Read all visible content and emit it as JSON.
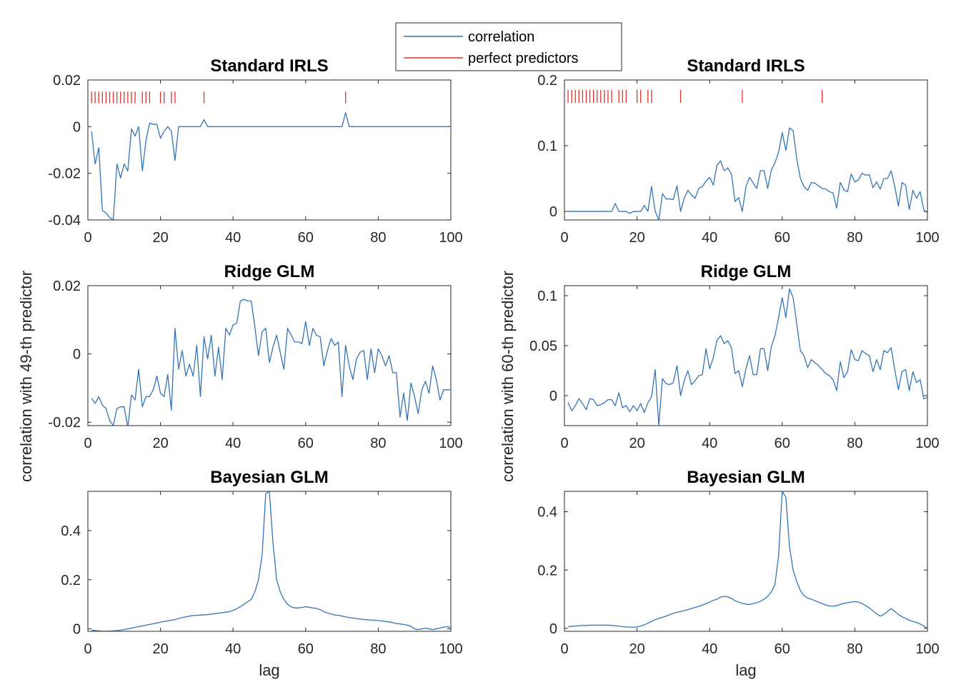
{
  "figure": {
    "legend": {
      "entries": [
        {
          "label": "correlation",
          "color": "#0072BD"
        },
        {
          "label": "perfect predictors",
          "color": "#D95319"
        }
      ]
    },
    "left_ylabel": "correlation with 49-th predictor",
    "right_ylabel": "correlation with 60-th predictor",
    "xlabel_left": "lag",
    "xlabel_right": "lag",
    "colors": {
      "line": "#3474b5",
      "marker": "#e0302b",
      "axis": "#262626"
    }
  },
  "chart_data": [
    {
      "id": "irls49",
      "type": "line",
      "title": "Standard IRLS",
      "xlabel": "",
      "ylabel": "",
      "xlim": [
        0,
        100
      ],
      "ylim": [
        -0.04,
        0.02
      ],
      "xticks": [
        "0",
        "20",
        "40",
        "60",
        "80",
        "100"
      ],
      "yticks": [
        {
          "v": -0.04,
          "t": "-0.04"
        },
        {
          "v": -0.02,
          "t": "-0.02"
        },
        {
          "v": 0,
          "t": "0"
        },
        {
          "v": 0.02,
          "t": "0.02"
        }
      ],
      "marker_y": 0.0125,
      "marker_height": 0.005,
      "markers": [
        1,
        2,
        3,
        4,
        5,
        6,
        7,
        8,
        9,
        10,
        11,
        12,
        13,
        15,
        16,
        17,
        20,
        21,
        23,
        24,
        32,
        71
      ],
      "series": [
        {
          "x_start": 1,
          "values": [
            -0.002,
            -0.016,
            -0.009,
            -0.036,
            -0.037,
            -0.039,
            -0.04,
            -0.016,
            -0.022,
            -0.016,
            -0.019,
            -0.001,
            -0.004,
            0,
            -0.019,
            -0.006,
            0.0015,
            0.001,
            0.001,
            -0.005,
            -0.002,
            0,
            -0.002,
            -0.0145,
            0,
            0,
            0,
            0,
            0,
            0,
            0,
            0.003,
            0,
            0,
            0,
            0,
            0,
            0,
            0,
            0,
            0,
            0,
            0,
            0,
            0,
            0,
            0,
            0,
            0,
            0,
            0,
            0,
            0,
            0,
            0,
            0,
            0,
            0,
            0,
            0,
            0,
            0,
            0,
            0,
            0,
            0,
            0,
            0,
            0,
            0,
            0.006,
            0,
            0,
            0,
            0,
            0,
            0,
            0,
            0,
            0,
            0,
            0,
            0,
            0,
            0,
            0,
            0,
            0,
            0,
            0,
            0,
            0,
            0,
            0,
            0,
            0,
            0,
            0,
            0,
            0
          ]
        }
      ]
    },
    {
      "id": "irls60",
      "type": "line",
      "title": "Standard IRLS",
      "xlabel": "",
      "ylabel": "",
      "xlim": [
        0,
        100
      ],
      "ylim": [
        -0.013,
        0.2
      ],
      "xticks": [
        "0",
        "20",
        "40",
        "60",
        "80",
        "100"
      ],
      "yticks": [
        {
          "v": 0,
          "t": "0"
        },
        {
          "v": 0.1,
          "t": "0.1"
        },
        {
          "v": 0.2,
          "t": "0.2"
        }
      ],
      "marker_y": 0.175,
      "marker_height": 0.02,
      "markers": [
        1,
        2,
        3,
        4,
        5,
        6,
        7,
        8,
        9,
        10,
        11,
        12,
        13,
        15,
        16,
        17,
        20,
        21,
        23,
        24,
        32,
        49,
        71
      ],
      "series": [
        {
          "x_start": 1,
          "values": [
            0,
            0,
            0,
            0,
            0,
            0,
            0,
            0,
            0,
            0,
            0,
            0,
            0,
            0.012,
            0,
            0,
            0,
            -0.003,
            0,
            0,
            0,
            0.009,
            0,
            0.038,
            0,
            -0.013,
            0.027,
            0.019,
            0.019,
            0.018,
            0.039,
            0,
            0.02,
            0.032,
            0.025,
            0.02,
            0.035,
            0.038,
            0.046,
            0.052,
            0.04,
            0.07,
            0.077,
            0.062,
            0.066,
            0.057,
            0.015,
            0.021,
            0,
            0.038,
            0.052,
            0.043,
            0.035,
            0.062,
            0.062,
            0.035,
            0.063,
            0.074,
            0.09,
            0.12,
            0.093,
            0.127,
            0.123,
            0.08,
            0.05,
            0.038,
            0.032,
            0.044,
            0.043,
            0.039,
            0.035,
            0.034,
            0.03,
            0.028,
            0.005,
            0.044,
            0.033,
            0.03,
            0.057,
            0.045,
            0.048,
            0.058,
            0.055,
            0.056,
            0.036,
            0.045,
            0.034,
            0.05,
            0.05,
            0.062,
            0.038,
            0.008,
            0.044,
            0.04,
            0.003,
            0.032,
            0.02,
            0.03,
            0.002,
            -0.002,
            -0.002
          ]
        }
      ]
    },
    {
      "id": "ridge49",
      "type": "line",
      "title": "Ridge GLM",
      "xlabel": "",
      "ylabel": "",
      "xlim": [
        0,
        100
      ],
      "ylim": [
        -0.021,
        0.02
      ],
      "xticks": [
        "0",
        "20",
        "40",
        "60",
        "80",
        "100"
      ],
      "yticks": [
        {
          "v": -0.02,
          "t": "-0.02"
        },
        {
          "v": 0,
          "t": "0"
        },
        {
          "v": 0.02,
          "t": "0.02"
        }
      ],
      "series": [
        {
          "x_start": 1,
          "values": [
            -0.013,
            -0.0145,
            -0.0125,
            -0.015,
            -0.016,
            -0.0195,
            -0.021,
            -0.016,
            -0.0155,
            -0.0155,
            -0.0215,
            -0.012,
            -0.0135,
            -0.0045,
            -0.0155,
            -0.0125,
            -0.0125,
            -0.0105,
            -0.0065,
            -0.0115,
            -0.0125,
            -0.006,
            -0.0165,
            0.0075,
            -0.0045,
            0.001,
            -0.0065,
            -0.003,
            -0.0065,
            0.0025,
            -0.0125,
            0.005,
            -0.0015,
            0.0055,
            -0.0065,
            0.002,
            -0.0075,
            0.0075,
            0.0055,
            0.0085,
            0.009,
            0.0155,
            0.016,
            0.0155,
            0.0155,
            0.008,
            -0.0005,
            0.0065,
            0.0075,
            -0.0025,
            0.002,
            0.0055,
            0.0005,
            -0.0045,
            0.0075,
            0.0055,
            0.0035,
            0.0035,
            0.003,
            0.0095,
            0.0025,
            0.0075,
            0.0055,
            0.005,
            -0.0035,
            0.001,
            0.0045,
            0.0025,
            0.0035,
            -0.0125,
            0.0025,
            -0.0035,
            -0.0075,
            -0.0015,
            0.0005,
            0.001,
            -0.0075,
            0.0015,
            -0.0055,
            0.0015,
            -0.0005,
            -0.0035,
            -0.0005,
            -0.0055,
            -0.0055,
            -0.0185,
            -0.0115,
            -0.0195,
            -0.0085,
            -0.0125,
            -0.0175,
            -0.0105,
            -0.008,
            -0.0115,
            -0.0035,
            -0.0075,
            -0.0135,
            -0.0105,
            -0.0105,
            -0.0105
          ]
        }
      ]
    },
    {
      "id": "ridge60",
      "type": "line",
      "title": "Ridge GLM",
      "xlabel": "",
      "ylabel": "",
      "xlim": [
        0,
        100
      ],
      "ylim": [
        -0.03,
        0.11
      ],
      "xticks": [
        "0",
        "20",
        "40",
        "60",
        "80",
        "100"
      ],
      "yticks": [
        {
          "v": 0,
          "t": "0"
        },
        {
          "v": 0.05,
          "t": "0.05"
        },
        {
          "v": 0.1,
          "t": "0.1"
        }
      ],
      "series": [
        {
          "x_start": 1,
          "values": [
            -0.007,
            -0.015,
            -0.01,
            -0.003,
            -0.008,
            -0.014,
            -0.003,
            -0.004,
            -0.01,
            -0.009,
            -0.007,
            -0.004,
            -0.004,
            -0.01,
            0.003,
            -0.012,
            -0.01,
            -0.016,
            -0.01,
            -0.015,
            -0.008,
            -0.017,
            -0.007,
            -0.001,
            0.026,
            -0.03,
            0.017,
            0.012,
            0.011,
            0.013,
            0.03,
            0,
            0.015,
            0.025,
            0.011,
            0.015,
            0.02,
            0.021,
            0.047,
            0.027,
            0.038,
            0.055,
            0.06,
            0.052,
            0.055,
            0.048,
            0.022,
            0.025,
            0.009,
            0.027,
            0.04,
            0.021,
            0.021,
            0.047,
            0.047,
            0.025,
            0.049,
            0.06,
            0.078,
            0.098,
            0.078,
            0.107,
            0.098,
            0.072,
            0.045,
            0.04,
            0.028,
            0.036,
            0.033,
            0.03,
            0.026,
            0.022,
            0.02,
            0.016,
            0.005,
            0.034,
            0.018,
            0.024,
            0.046,
            0.036,
            0.035,
            0.045,
            0.042,
            0.04,
            0.024,
            0.036,
            0.026,
            0.045,
            0.043,
            0.048,
            0.026,
            0.006,
            0.024,
            0.026,
            0.005,
            0.024,
            0.013,
            0.016,
            -0.003,
            -0.002,
            -0.002
          ]
        }
      ]
    },
    {
      "id": "bayes49",
      "type": "line",
      "title": "Bayesian GLM",
      "xlabel": "lag",
      "ylabel": "",
      "xlim": [
        0,
        100
      ],
      "ylim": [
        -0.01,
        0.56
      ],
      "xticks": [
        "0",
        "20",
        "40",
        "60",
        "80",
        "100"
      ],
      "yticks": [
        {
          "v": 0,
          "t": "0"
        },
        {
          "v": 0.2,
          "t": "0.2"
        },
        {
          "v": 0.4,
          "t": "0.4"
        }
      ],
      "series": [
        {
          "x_start": 1,
          "values": [
            -0.005,
            -0.007,
            -0.008,
            -0.009,
            -0.009,
            -0.009,
            -0.008,
            -0.007,
            -0.005,
            -0.003,
            0,
            0.003,
            0.006,
            0.009,
            0.012,
            0.015,
            0.018,
            0.021,
            0.024,
            0.027,
            0.03,
            0.032,
            0.035,
            0.038,
            0.042,
            0.046,
            0.049,
            0.052,
            0.054,
            0.055,
            0.056,
            0.057,
            0.058,
            0.06,
            0.062,
            0.064,
            0.066,
            0.068,
            0.07,
            0.075,
            0.082,
            0.09,
            0.1,
            0.11,
            0.12,
            0.15,
            0.2,
            0.3,
            0.55,
            0.56,
            0.35,
            0.2,
            0.15,
            0.12,
            0.1,
            0.09,
            0.085,
            0.085,
            0.087,
            0.09,
            0.088,
            0.085,
            0.083,
            0.078,
            0.07,
            0.065,
            0.06,
            0.057,
            0.055,
            0.052,
            0.049,
            0.046,
            0.044,
            0.042,
            0.04,
            0.038,
            0.037,
            0.036,
            0.035,
            0.034,
            0.032,
            0.03,
            0.028,
            0.025,
            0.022,
            0.02,
            0.018,
            0.015,
            0.01,
            0,
            -0.003,
            0,
            0.003,
            0,
            -0.003,
            0,
            0.003,
            0.007,
            0.009,
            0.005
          ]
        }
      ]
    },
    {
      "id": "bayes60",
      "type": "line",
      "title": "Bayesian GLM",
      "xlabel": "lag",
      "ylabel": "",
      "xlim": [
        0,
        100
      ],
      "ylim": [
        -0.01,
        0.47
      ],
      "xticks": [
        "0",
        "20",
        "40",
        "60",
        "80",
        "100"
      ],
      "yticks": [
        {
          "v": 0,
          "t": "0"
        },
        {
          "v": 0.2,
          "t": "0.2"
        },
        {
          "v": 0.4,
          "t": "0.4"
        }
      ],
      "series": [
        {
          "x_start": 1,
          "values": [
            0.006,
            0.007,
            0.008,
            0.009,
            0.01,
            0.01,
            0.011,
            0.011,
            0.011,
            0.011,
            0.011,
            0.011,
            0.01,
            0.009,
            0.008,
            0.006,
            0.005,
            0.004,
            0.004,
            0.005,
            0.008,
            0.012,
            0.018,
            0.024,
            0.03,
            0.034,
            0.038,
            0.042,
            0.047,
            0.052,
            0.055,
            0.058,
            0.061,
            0.064,
            0.068,
            0.072,
            0.076,
            0.08,
            0.085,
            0.09,
            0.096,
            0.1,
            0.107,
            0.11,
            0.108,
            0.103,
            0.095,
            0.09,
            0.086,
            0.083,
            0.082,
            0.085,
            0.088,
            0.093,
            0.1,
            0.11,
            0.125,
            0.15,
            0.25,
            0.47,
            0.45,
            0.28,
            0.2,
            0.16,
            0.13,
            0.112,
            0.104,
            0.1,
            0.095,
            0.09,
            0.085,
            0.08,
            0.077,
            0.076,
            0.078,
            0.082,
            0.086,
            0.088,
            0.09,
            0.092,
            0.09,
            0.085,
            0.078,
            0.07,
            0.06,
            0.05,
            0.042,
            0.048,
            0.058,
            0.068,
            0.058,
            0.048,
            0.04,
            0.034,
            0.028,
            0.024,
            0.02,
            0.015,
            0.008,
            0,
            -0.005
          ]
        }
      ]
    }
  ]
}
